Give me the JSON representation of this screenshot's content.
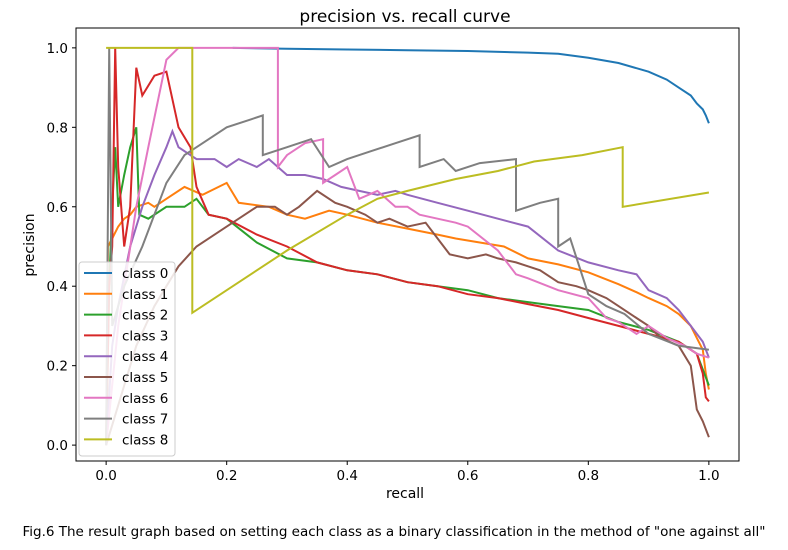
{
  "caption": "Fig.6 The result graph based on setting each class as a binary classification in the method of \"one against all\"",
  "chart_data": {
    "type": "line",
    "title": "precision vs. recall curve",
    "xlabel": "recall",
    "ylabel": "precision",
    "xlim": [
      -0.05,
      1.05
    ],
    "ylim": [
      -0.04,
      1.05
    ],
    "xticks": [
      "0.0",
      "0.2",
      "0.4",
      "0.6",
      "0.8",
      "1.0"
    ],
    "yticks": [
      "0.0",
      "0.2",
      "0.4",
      "0.6",
      "0.8",
      "1.0"
    ],
    "xtick_values": [
      0,
      0.2,
      0.4,
      0.6,
      0.8,
      1.0
    ],
    "ytick_values": [
      0,
      0.2,
      0.4,
      0.6,
      0.8,
      1.0
    ],
    "grid": false,
    "legend_position": "lower-left",
    "series": [
      {
        "name": "class 0",
        "color": "#1f77b4",
        "points": [
          [
            0.21,
            1.0
          ],
          [
            0.3,
            0.998
          ],
          [
            0.4,
            0.996
          ],
          [
            0.5,
            0.994
          ],
          [
            0.6,
            0.992
          ],
          [
            0.7,
            0.988
          ],
          [
            0.75,
            0.985
          ],
          [
            0.8,
            0.975
          ],
          [
            0.85,
            0.962
          ],
          [
            0.9,
            0.94
          ],
          [
            0.93,
            0.92
          ],
          [
            0.95,
            0.9
          ],
          [
            0.97,
            0.88
          ],
          [
            0.98,
            0.86
          ],
          [
            0.99,
            0.845
          ],
          [
            0.995,
            0.83
          ],
          [
            1.0,
            0.81
          ]
        ]
      },
      {
        "name": "class 1",
        "color": "#ff7f0e",
        "points": [
          [
            0.0,
            0.0
          ],
          [
            0.003,
            0.5
          ],
          [
            0.01,
            0.52
          ],
          [
            0.02,
            0.55
          ],
          [
            0.03,
            0.57
          ],
          [
            0.04,
            0.58
          ],
          [
            0.05,
            0.6
          ],
          [
            0.07,
            0.61
          ],
          [
            0.08,
            0.6
          ],
          [
            0.1,
            0.62
          ],
          [
            0.13,
            0.65
          ],
          [
            0.16,
            0.63
          ],
          [
            0.2,
            0.66
          ],
          [
            0.22,
            0.61
          ],
          [
            0.27,
            0.6
          ],
          [
            0.3,
            0.58
          ],
          [
            0.33,
            0.57
          ],
          [
            0.37,
            0.59
          ],
          [
            0.4,
            0.58
          ],
          [
            0.45,
            0.56
          ],
          [
            0.5,
            0.545
          ],
          [
            0.55,
            0.53
          ],
          [
            0.58,
            0.52
          ],
          [
            0.62,
            0.51
          ],
          [
            0.66,
            0.5
          ],
          [
            0.7,
            0.47
          ],
          [
            0.75,
            0.455
          ],
          [
            0.8,
            0.435
          ],
          [
            0.85,
            0.405
          ],
          [
            0.88,
            0.385
          ],
          [
            0.9,
            0.37
          ],
          [
            0.93,
            0.35
          ],
          [
            0.95,
            0.33
          ],
          [
            0.97,
            0.3
          ],
          [
            0.98,
            0.27
          ],
          [
            0.99,
            0.24
          ],
          [
            0.995,
            0.18
          ],
          [
            1.0,
            0.14
          ]
        ]
      },
      {
        "name": "class 2",
        "color": "#2ca02c",
        "points": [
          [
            0.0,
            0.0
          ],
          [
            0.005,
            0.4
          ],
          [
            0.01,
            0.6
          ],
          [
            0.015,
            0.75
          ],
          [
            0.02,
            0.6
          ],
          [
            0.03,
            0.68
          ],
          [
            0.04,
            0.75
          ],
          [
            0.05,
            0.8
          ],
          [
            0.055,
            0.58
          ],
          [
            0.07,
            0.57
          ],
          [
            0.1,
            0.6
          ],
          [
            0.13,
            0.6
          ],
          [
            0.15,
            0.62
          ],
          [
            0.17,
            0.58
          ],
          [
            0.2,
            0.57
          ],
          [
            0.25,
            0.51
          ],
          [
            0.3,
            0.47
          ],
          [
            0.35,
            0.46
          ],
          [
            0.4,
            0.44
          ],
          [
            0.45,
            0.43
          ],
          [
            0.5,
            0.41
          ],
          [
            0.55,
            0.4
          ],
          [
            0.6,
            0.39
          ],
          [
            0.65,
            0.37
          ],
          [
            0.7,
            0.36
          ],
          [
            0.75,
            0.35
          ],
          [
            0.8,
            0.34
          ],
          [
            0.85,
            0.31
          ],
          [
            0.9,
            0.29
          ],
          [
            0.95,
            0.26
          ],
          [
            0.98,
            0.23
          ],
          [
            1.0,
            0.15
          ]
        ]
      },
      {
        "name": "class 3",
        "color": "#d62728",
        "points": [
          [
            0.0,
            0.0
          ],
          [
            0.005,
            0.4
          ],
          [
            0.01,
            0.5
          ],
          [
            0.015,
            1.0
          ],
          [
            0.02,
            0.7
          ],
          [
            0.03,
            0.5
          ],
          [
            0.04,
            0.6
          ],
          [
            0.05,
            0.95
          ],
          [
            0.06,
            0.88
          ],
          [
            0.08,
            0.93
          ],
          [
            0.1,
            0.94
          ],
          [
            0.12,
            0.8
          ],
          [
            0.14,
            0.75
          ],
          [
            0.15,
            0.65
          ],
          [
            0.17,
            0.58
          ],
          [
            0.2,
            0.57
          ],
          [
            0.25,
            0.53
          ],
          [
            0.3,
            0.5
          ],
          [
            0.35,
            0.46
          ],
          [
            0.4,
            0.44
          ],
          [
            0.45,
            0.43
          ],
          [
            0.5,
            0.41
          ],
          [
            0.55,
            0.4
          ],
          [
            0.6,
            0.38
          ],
          [
            0.65,
            0.37
          ],
          [
            0.7,
            0.355
          ],
          [
            0.75,
            0.34
          ],
          [
            0.8,
            0.32
          ],
          [
            0.85,
            0.3
          ],
          [
            0.9,
            0.28
          ],
          [
            0.95,
            0.26
          ],
          [
            0.98,
            0.23
          ],
          [
            0.99,
            0.18
          ],
          [
            0.995,
            0.12
          ],
          [
            1.0,
            0.11
          ]
        ]
      },
      {
        "name": "class 4",
        "color": "#9467bd",
        "points": [
          [
            0.0,
            0.0
          ],
          [
            0.01,
            0.25
          ],
          [
            0.02,
            0.35
          ],
          [
            0.04,
            0.5
          ],
          [
            0.06,
            0.6
          ],
          [
            0.08,
            0.68
          ],
          [
            0.1,
            0.75
          ],
          [
            0.11,
            0.79
          ],
          [
            0.12,
            0.75
          ],
          [
            0.15,
            0.72
          ],
          [
            0.18,
            0.72
          ],
          [
            0.2,
            0.7
          ],
          [
            0.22,
            0.72
          ],
          [
            0.25,
            0.7
          ],
          [
            0.27,
            0.72
          ],
          [
            0.3,
            0.68
          ],
          [
            0.33,
            0.68
          ],
          [
            0.36,
            0.67
          ],
          [
            0.39,
            0.65
          ],
          [
            0.42,
            0.64
          ],
          [
            0.45,
            0.63
          ],
          [
            0.48,
            0.64
          ],
          [
            0.5,
            0.63
          ],
          [
            0.55,
            0.61
          ],
          [
            0.6,
            0.59
          ],
          [
            0.65,
            0.57
          ],
          [
            0.7,
            0.55
          ],
          [
            0.75,
            0.49
          ],
          [
            0.8,
            0.46
          ],
          [
            0.85,
            0.44
          ],
          [
            0.88,
            0.43
          ],
          [
            0.9,
            0.39
          ],
          [
            0.93,
            0.37
          ],
          [
            0.95,
            0.34
          ],
          [
            0.97,
            0.3
          ],
          [
            0.99,
            0.26
          ],
          [
            1.0,
            0.22
          ]
        ]
      },
      {
        "name": "class 5",
        "color": "#8c564b",
        "points": [
          [
            0.0,
            0.0
          ],
          [
            0.01,
            0.05
          ],
          [
            0.03,
            0.15
          ],
          [
            0.05,
            0.25
          ],
          [
            0.08,
            0.35
          ],
          [
            0.1,
            0.4
          ],
          [
            0.12,
            0.45
          ],
          [
            0.15,
            0.5
          ],
          [
            0.18,
            0.53
          ],
          [
            0.2,
            0.55
          ],
          [
            0.22,
            0.57
          ],
          [
            0.25,
            0.6
          ],
          [
            0.28,
            0.6
          ],
          [
            0.3,
            0.58
          ],
          [
            0.32,
            0.6
          ],
          [
            0.35,
            0.64
          ],
          [
            0.38,
            0.61
          ],
          [
            0.4,
            0.6
          ],
          [
            0.43,
            0.58
          ],
          [
            0.45,
            0.56
          ],
          [
            0.47,
            0.57
          ],
          [
            0.5,
            0.55
          ],
          [
            0.53,
            0.56
          ],
          [
            0.55,
            0.52
          ],
          [
            0.57,
            0.48
          ],
          [
            0.6,
            0.47
          ],
          [
            0.63,
            0.48
          ],
          [
            0.65,
            0.47
          ],
          [
            0.68,
            0.46
          ],
          [
            0.7,
            0.45
          ],
          [
            0.72,
            0.44
          ],
          [
            0.75,
            0.41
          ],
          [
            0.78,
            0.4
          ],
          [
            0.8,
            0.39
          ],
          [
            0.83,
            0.37
          ],
          [
            0.85,
            0.35
          ],
          [
            0.88,
            0.32
          ],
          [
            0.9,
            0.3
          ],
          [
            0.92,
            0.27
          ],
          [
            0.95,
            0.25
          ],
          [
            0.97,
            0.2
          ],
          [
            0.98,
            0.09
          ],
          [
            0.99,
            0.06
          ],
          [
            1.0,
            0.02
          ]
        ]
      },
      {
        "name": "class 6",
        "color": "#e377c2",
        "points": [
          [
            0.0,
            0.0
          ],
          [
            0.02,
            0.3
          ],
          [
            0.05,
            0.6
          ],
          [
            0.07,
            0.75
          ],
          [
            0.1,
            0.97
          ],
          [
            0.12,
            1.0
          ],
          [
            0.285,
            1.0
          ],
          [
            0.285,
            0.7
          ],
          [
            0.3,
            0.73
          ],
          [
            0.33,
            0.76
          ],
          [
            0.36,
            0.77
          ],
          [
            0.36,
            0.66
          ],
          [
            0.38,
            0.68
          ],
          [
            0.4,
            0.7
          ],
          [
            0.42,
            0.62
          ],
          [
            0.45,
            0.64
          ],
          [
            0.48,
            0.6
          ],
          [
            0.5,
            0.6
          ],
          [
            0.52,
            0.58
          ],
          [
            0.55,
            0.57
          ],
          [
            0.58,
            0.56
          ],
          [
            0.6,
            0.55
          ],
          [
            0.65,
            0.49
          ],
          [
            0.68,
            0.43
          ],
          [
            0.7,
            0.42
          ],
          [
            0.75,
            0.39
          ],
          [
            0.8,
            0.37
          ],
          [
            0.83,
            0.32
          ],
          [
            0.85,
            0.31
          ],
          [
            0.88,
            0.28
          ],
          [
            0.9,
            0.3
          ],
          [
            0.93,
            0.27
          ],
          [
            0.96,
            0.25
          ],
          [
            0.98,
            0.23
          ],
          [
            1.0,
            0.22
          ]
        ]
      },
      {
        "name": "class 7",
        "color": "#7f7f7f",
        "points": [
          [
            0.0,
            0.0
          ],
          [
            0.005,
            1.0
          ],
          [
            0.01,
            0.3
          ],
          [
            0.03,
            0.4
          ],
          [
            0.06,
            0.5
          ],
          [
            0.1,
            0.66
          ],
          [
            0.13,
            0.73
          ],
          [
            0.16,
            0.76
          ],
          [
            0.2,
            0.8
          ],
          [
            0.24,
            0.82
          ],
          [
            0.26,
            0.83
          ],
          [
            0.26,
            0.73
          ],
          [
            0.3,
            0.75
          ],
          [
            0.34,
            0.77
          ],
          [
            0.37,
            0.7
          ],
          [
            0.4,
            0.72
          ],
          [
            0.44,
            0.74
          ],
          [
            0.48,
            0.76
          ],
          [
            0.52,
            0.78
          ],
          [
            0.52,
            0.7
          ],
          [
            0.56,
            0.72
          ],
          [
            0.58,
            0.69
          ],
          [
            0.62,
            0.71
          ],
          [
            0.68,
            0.72
          ],
          [
            0.68,
            0.59
          ],
          [
            0.72,
            0.61
          ],
          [
            0.75,
            0.62
          ],
          [
            0.75,
            0.5
          ],
          [
            0.77,
            0.52
          ],
          [
            0.8,
            0.38
          ],
          [
            0.83,
            0.35
          ],
          [
            0.86,
            0.33
          ],
          [
            0.9,
            0.28
          ],
          [
            0.95,
            0.25
          ],
          [
            1.0,
            0.24
          ]
        ]
      },
      {
        "name": "class 8",
        "color": "#bcbd22",
        "points": [
          [
            0.0,
            1.0
          ],
          [
            0.143,
            1.0
          ],
          [
            0.143,
            0.333
          ],
          [
            0.2,
            0.39
          ],
          [
            0.3,
            0.49
          ],
          [
            0.4,
            0.58
          ],
          [
            0.45,
            0.62
          ],
          [
            0.5,
            0.64
          ],
          [
            0.58,
            0.67
          ],
          [
            0.65,
            0.69
          ],
          [
            0.71,
            0.714
          ],
          [
            0.79,
            0.73
          ],
          [
            0.857,
            0.75
          ],
          [
            0.857,
            0.6
          ],
          [
            1.0,
            0.636
          ]
        ]
      }
    ]
  }
}
